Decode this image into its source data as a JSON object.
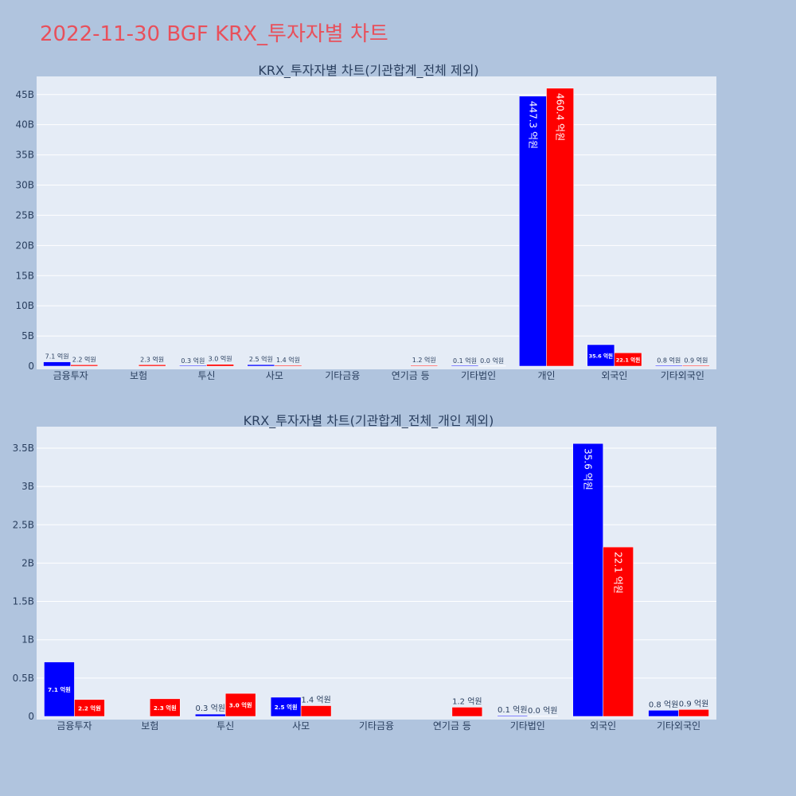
{
  "page": {
    "title": "2022-11-30 BGF KRX_투자자별 차트",
    "title_color": "#e8505b",
    "background": "#b0c4de",
    "plot_background": "#e5ecf6"
  },
  "chart_data": [
    {
      "type": "bar",
      "title": "KRX_투자자별 차트(기관합계_전체 제외)",
      "categories": [
        "금융투자",
        "보험",
        "투신",
        "사모",
        "기타금융",
        "연기금 등",
        "기타법인",
        "개인",
        "외국인",
        "기타외국인"
      ],
      "yticks": [
        "0",
        "5B",
        "10B",
        "15B",
        "20B",
        "25B",
        "30B",
        "35B",
        "40B",
        "45B"
      ],
      "ylim": [
        0,
        48.0
      ],
      "grid": true,
      "series": [
        {
          "color": "#0000ff",
          "values": [
            0.71,
            null,
            0.03,
            0.25,
            null,
            null,
            0.01,
            44.73,
            3.56,
            0.08
          ],
          "labels": [
            "7.1 억원",
            "",
            "0.3 억원",
            "2.5 억원",
            "",
            "",
            "0.1 억원",
            "447.3 억원",
            "35.6 억원",
            "0.8 억원"
          ]
        },
        {
          "color": "#ff0000",
          "values": [
            0.22,
            0.23,
            0.3,
            0.14,
            null,
            0.12,
            0.0,
            46.04,
            2.21,
            0.09
          ],
          "labels": [
            "2.2 억원",
            "2.3 억원",
            "3.0 억원",
            "1.4 억원",
            "",
            "1.2 억원",
            "0.0 억원",
            "460.4 억원",
            "22.1 억원",
            "0.9 억원"
          ]
        }
      ]
    },
    {
      "type": "bar",
      "title": "KRX_투자자별 차트(기관합계_전체_개인 제외)",
      "categories": [
        "금융투자",
        "보험",
        "투신",
        "사모",
        "기타금융",
        "연기금 등",
        "기타법인",
        "외국인",
        "기타외국인"
      ],
      "yticks": [
        "0",
        "0.5B",
        "1B",
        "1.5B",
        "2B",
        "2.5B",
        "3B",
        "3.5B"
      ],
      "ylim": [
        0,
        3.78
      ],
      "grid": true,
      "series": [
        {
          "color": "#0000ff",
          "values": [
            0.71,
            null,
            0.03,
            0.25,
            null,
            null,
            0.01,
            3.56,
            0.08
          ],
          "labels": [
            "7.1 억원",
            "",
            "0.3 억원",
            "2.5 억원",
            "",
            "",
            "0.1 억원",
            "35.6 억원",
            "0.8 억원"
          ]
        },
        {
          "color": "#ff0000",
          "values": [
            0.22,
            0.23,
            0.3,
            0.14,
            null,
            0.12,
            0.0,
            2.21,
            0.09
          ],
          "labels": [
            "2.2 억원",
            "2.3 억원",
            "3.0 억원",
            "1.4 억원",
            "",
            "1.2 억원",
            "0.0 억원",
            "22.1 억원",
            "0.9 억원"
          ]
        }
      ]
    }
  ]
}
